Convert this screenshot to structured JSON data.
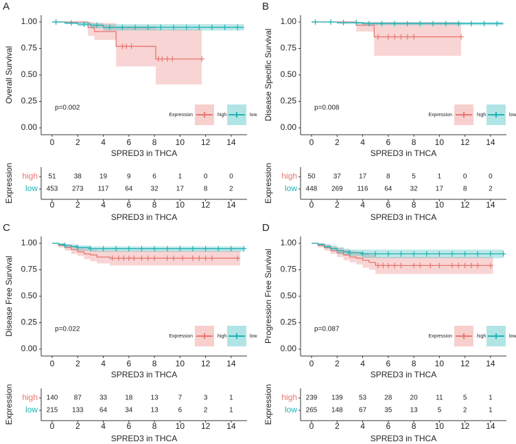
{
  "chart_data": [
    {
      "type": "step",
      "panel": "A",
      "ylabel": "Overall Survival",
      "xlabel": "SPRED3 in THCA",
      "annotation": "p=0.002",
      "legend_title": "Expression",
      "legend": "bottom-right",
      "xlim": [
        -0.86,
        15.24
      ],
      "ylim": [
        -0.065,
        1.065
      ],
      "xticks": [
        0,
        2,
        4,
        6,
        8,
        10,
        12,
        14
      ],
      "yticks": [
        {
          "value": 0,
          "label": "0.00"
        },
        {
          "value": 0.25,
          "label": "0.25"
        },
        {
          "value": 0.5,
          "label": "0.50"
        },
        {
          "value": 0.75,
          "label": "0.75"
        },
        {
          "value": 1,
          "label": "1.00"
        }
      ],
      "series": [
        {
          "name": "high",
          "color": "#E8756F",
          "x": [
            0,
            2.8,
            3.3,
            5.0,
            8.1,
            11.7
          ],
          "values": [
            1,
            0.95,
            0.91,
            0.77,
            0.65,
            0.65
          ],
          "lower": [
            1,
            0.87,
            0.83,
            0.58,
            0.41,
            0.41
          ],
          "upper": [
            1,
            1,
            0.99,
            0.96,
            0.93,
            0.93
          ],
          "censored": [
            5.5,
            5.8,
            6.2,
            8.3,
            8.6,
            9,
            9.4,
            11.7
          ]
        },
        {
          "name": "low",
          "color": "#20B2B4",
          "x": [
            0,
            1,
            2,
            3,
            4,
            15
          ],
          "values": [
            1,
            0.99,
            0.98,
            0.97,
            0.95,
            0.95
          ],
          "lower": [
            1,
            0.98,
            0.96,
            0.94,
            0.92,
            0.92
          ],
          "upper": [
            1,
            1,
            1,
            0.99,
            0.98,
            0.98
          ],
          "censored": [
            0.3,
            1.5,
            2.5,
            3.5,
            4.5,
            5.5,
            6.5,
            7.5,
            8.5,
            9.5,
            10.5,
            11.5,
            12.5,
            13.5,
            14.5
          ]
        }
      ],
      "risk_table": {
        "ylabel": "Expression",
        "xlabel": "SPRED3 in THCA",
        "xticks": [
          0,
          2,
          4,
          6,
          8,
          10,
          12,
          14
        ],
        "rows": [
          {
            "name": "high",
            "color": "#E8756F",
            "values": [
              51,
              38,
              19,
              9,
              6,
              1,
              0,
              0
            ]
          },
          {
            "name": "low",
            "color": "#20B2B4",
            "values": [
              453,
              273,
              117,
              64,
              32,
              17,
              8,
              2
            ]
          }
        ]
      }
    },
    {
      "type": "step",
      "panel": "B",
      "ylabel": "Disease Specific Survival",
      "xlabel": "SPRED3 in THCA",
      "annotation": "p=0.008",
      "legend_title": "Expression",
      "legend": "bottom-right",
      "xlim": [
        -0.86,
        15.24
      ],
      "ylim": [
        -0.065,
        1.065
      ],
      "xticks": [
        0,
        2,
        4,
        6,
        8,
        10,
        12,
        14
      ],
      "yticks": [
        {
          "value": 0,
          "label": "0.00"
        },
        {
          "value": 0.25,
          "label": "0.25"
        },
        {
          "value": 0.5,
          "label": "0.50"
        },
        {
          "value": 0.75,
          "label": "0.75"
        },
        {
          "value": 1,
          "label": "1.00"
        }
      ],
      "series": [
        {
          "name": "high",
          "color": "#E8756F",
          "x": [
            0,
            3.5,
            4.9,
            11.7
          ],
          "values": [
            1,
            0.97,
            0.86,
            0.86
          ],
          "lower": [
            1,
            0.91,
            0.68,
            0.68
          ],
          "upper": [
            1,
            1,
            1,
            1
          ],
          "censored": [
            5.2,
            6,
            6.5,
            7,
            7.5,
            8,
            11.7
          ]
        },
        {
          "name": "low",
          "color": "#20B2B4",
          "x": [
            0,
            2,
            4,
            15
          ],
          "values": [
            1,
            0.995,
            0.985,
            0.985
          ],
          "lower": [
            1,
            0.98,
            0.97,
            0.97
          ],
          "upper": [
            1,
            1,
            1,
            1
          ],
          "censored": [
            0.3,
            1.5,
            2.5,
            3.5,
            4.5,
            5.5,
            6.5,
            7.5,
            8.5,
            9.5,
            10.5,
            11.5,
            12.5,
            13.5,
            14.5
          ]
        }
      ],
      "risk_table": {
        "ylabel": "Expression",
        "xlabel": "SPRED3 in THCA",
        "xticks": [
          0,
          2,
          4,
          6,
          8,
          10,
          12,
          14
        ],
        "rows": [
          {
            "name": "high",
            "color": "#E8756F",
            "values": [
              50,
              37,
              17,
              8,
              5,
              1,
              0,
              0
            ]
          },
          {
            "name": "low",
            "color": "#20B2B4",
            "values": [
              448,
              269,
              116,
              64,
              32,
              17,
              8,
              2
            ]
          }
        ]
      }
    },
    {
      "type": "step",
      "panel": "C",
      "ylabel": "Disease Free Survival",
      "xlabel": "SPRED3 in THCA",
      "annotation": "p=0.022",
      "legend_title": "Expression",
      "legend": "bottom-right",
      "xlim": [
        -0.86,
        15.24
      ],
      "ylim": [
        -0.065,
        1.065
      ],
      "xticks": [
        0,
        2,
        4,
        6,
        8,
        10,
        12,
        14
      ],
      "yticks": [
        {
          "value": 0,
          "label": "0.00"
        },
        {
          "value": 0.25,
          "label": "0.25"
        },
        {
          "value": 0.5,
          "label": "0.50"
        },
        {
          "value": 0.75,
          "label": "0.75"
        },
        {
          "value": 1,
          "label": "1.00"
        }
      ],
      "series": [
        {
          "name": "high",
          "color": "#E8756F",
          "x": [
            0,
            0.5,
            1,
            1.5,
            2,
            2.5,
            3,
            3.5,
            4.5,
            14.7
          ],
          "values": [
            1,
            0.98,
            0.96,
            0.94,
            0.92,
            0.9,
            0.89,
            0.87,
            0.86,
            0.86
          ],
          "lower": [
            1,
            0.96,
            0.93,
            0.9,
            0.88,
            0.85,
            0.83,
            0.81,
            0.79,
            0.78
          ],
          "upper": [
            1,
            1,
            0.99,
            0.98,
            0.96,
            0.95,
            0.94,
            0.93,
            0.93,
            0.93
          ],
          "censored": [
            4.7,
            5.2,
            5.6,
            6,
            6.4,
            7,
            7.5,
            8,
            9,
            9.5,
            10.2,
            11,
            11.5,
            12,
            12.5,
            14.5
          ]
        },
        {
          "name": "low",
          "color": "#20B2B4",
          "x": [
            0,
            0.5,
            1,
            1.5,
            2,
            3,
            15
          ],
          "values": [
            1,
            0.99,
            0.98,
            0.97,
            0.96,
            0.95,
            0.95
          ],
          "lower": [
            1,
            0.98,
            0.96,
            0.95,
            0.93,
            0.92,
            0.92
          ],
          "upper": [
            1,
            1,
            0.99,
            0.99,
            0.98,
            0.97,
            0.97
          ],
          "censored": [
            1,
            2,
            3,
            4,
            5,
            6,
            7,
            8,
            9,
            10,
            11,
            12,
            13,
            14,
            15
          ]
        }
      ],
      "risk_table": {
        "ylabel": "Expression",
        "xlabel": "SPRED3 in THCA",
        "xticks": [
          0,
          2,
          4,
          6,
          8,
          10,
          12,
          14
        ],
        "rows": [
          {
            "name": "high",
            "color": "#E8756F",
            "values": [
              140,
              87,
              33,
              18,
              13,
              7,
              3,
              1
            ]
          },
          {
            "name": "low",
            "color": "#20B2B4",
            "values": [
              215,
              133,
              64,
              34,
              13,
              6,
              2,
              1
            ]
          }
        ]
      }
    },
    {
      "type": "step",
      "panel": "D",
      "ylabel": "Progression Free Survival",
      "xlabel": "SPRED3 in THCA",
      "annotation": "p=0.087",
      "legend_title": "Expression",
      "legend": "bottom-right",
      "xlim": [
        -0.86,
        15.24
      ],
      "ylim": [
        -0.065,
        1.065
      ],
      "xticks": [
        0,
        2,
        4,
        6,
        8,
        10,
        12,
        14
      ],
      "yticks": [
        {
          "value": 0,
          "label": "0.00"
        },
        {
          "value": 0.25,
          "label": "0.25"
        },
        {
          "value": 0.5,
          "label": "0.50"
        },
        {
          "value": 0.75,
          "label": "0.75"
        },
        {
          "value": 1,
          "label": "1.00"
        }
      ],
      "series": [
        {
          "name": "high",
          "color": "#E8756F",
          "x": [
            0,
            0.5,
            1,
            1.5,
            2,
            2.5,
            3,
            3.5,
            4,
            4.5,
            5,
            14.2
          ],
          "values": [
            1,
            0.98,
            0.96,
            0.93,
            0.91,
            0.89,
            0.87,
            0.86,
            0.84,
            0.82,
            0.79,
            0.79
          ],
          "lower": [
            1,
            0.96,
            0.93,
            0.9,
            0.87,
            0.84,
            0.82,
            0.8,
            0.77,
            0.75,
            0.71,
            0.7
          ],
          "upper": [
            1,
            1,
            0.99,
            0.97,
            0.96,
            0.94,
            0.93,
            0.92,
            0.91,
            0.89,
            0.87,
            0.87
          ],
          "censored": [
            5.2,
            5.6,
            6,
            6.5,
            7,
            8,
            8.5,
            9.3,
            10,
            11,
            11.5,
            12,
            12.5,
            13,
            14
          ]
        },
        {
          "name": "low",
          "color": "#20B2B4",
          "x": [
            0,
            0.5,
            1,
            1.5,
            2,
            2.5,
            3,
            4,
            15
          ],
          "values": [
            1,
            0.99,
            0.97,
            0.95,
            0.93,
            0.92,
            0.91,
            0.9,
            0.9
          ],
          "lower": [
            1,
            0.98,
            0.95,
            0.93,
            0.9,
            0.89,
            0.88,
            0.86,
            0.85
          ],
          "upper": [
            1,
            1,
            0.99,
            0.98,
            0.96,
            0.95,
            0.94,
            0.94,
            0.94
          ],
          "censored": [
            3,
            4,
            5,
            6,
            7,
            8,
            9,
            10,
            11,
            12,
            13,
            14,
            15
          ]
        }
      ],
      "risk_table": {
        "ylabel": "Expression",
        "xlabel": "SPRED3 in THCA",
        "xticks": [
          0,
          2,
          4,
          6,
          8,
          10,
          12,
          14
        ],
        "rows": [
          {
            "name": "high",
            "color": "#E8756F",
            "values": [
              239,
              139,
              53,
              28,
              20,
              11,
              5,
              1
            ]
          },
          {
            "name": "low",
            "color": "#20B2B4",
            "values": [
              265,
              148,
              67,
              35,
              13,
              5,
              2,
              1
            ]
          }
        ]
      }
    }
  ]
}
